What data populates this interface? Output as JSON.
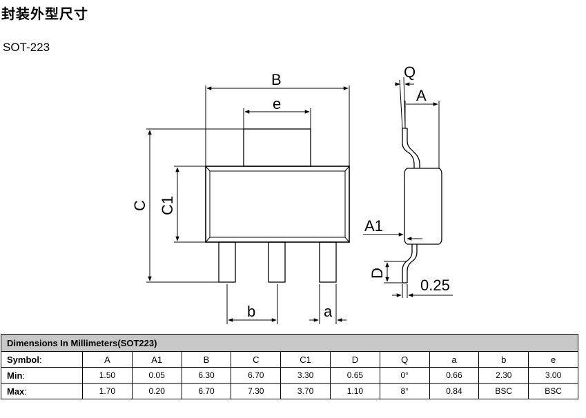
{
  "title": "封装外型尺寸",
  "subtitle": "SOT-223",
  "drawing": {
    "labels": {
      "B": "B",
      "e": "e",
      "C": "C",
      "C1": "C1",
      "b": "b",
      "a": "a",
      "Q": "Q",
      "A": "A",
      "A1": "A1",
      "D": "D",
      "t025": "0.25"
    }
  },
  "table": {
    "caption": "Dimensions In Millimeters(SOT223)",
    "symbol_label": "Symbol",
    "min_label": "Min",
    "max_label": "Max",
    "separator": ":",
    "symbols": [
      "A",
      "A1",
      "B",
      "C",
      "C1",
      "D",
      "Q",
      "a",
      "b",
      "e"
    ],
    "min": [
      "1.50",
      "0.05",
      "6.30",
      "6.70",
      "3.30",
      "0.65",
      "0°",
      "0.66",
      "2.30",
      "3.00"
    ],
    "max": [
      "1.70",
      "0.20",
      "6.70",
      "7.30",
      "3.70",
      "1.10",
      "8°",
      "0.84",
      "BSC",
      "BSC"
    ]
  }
}
